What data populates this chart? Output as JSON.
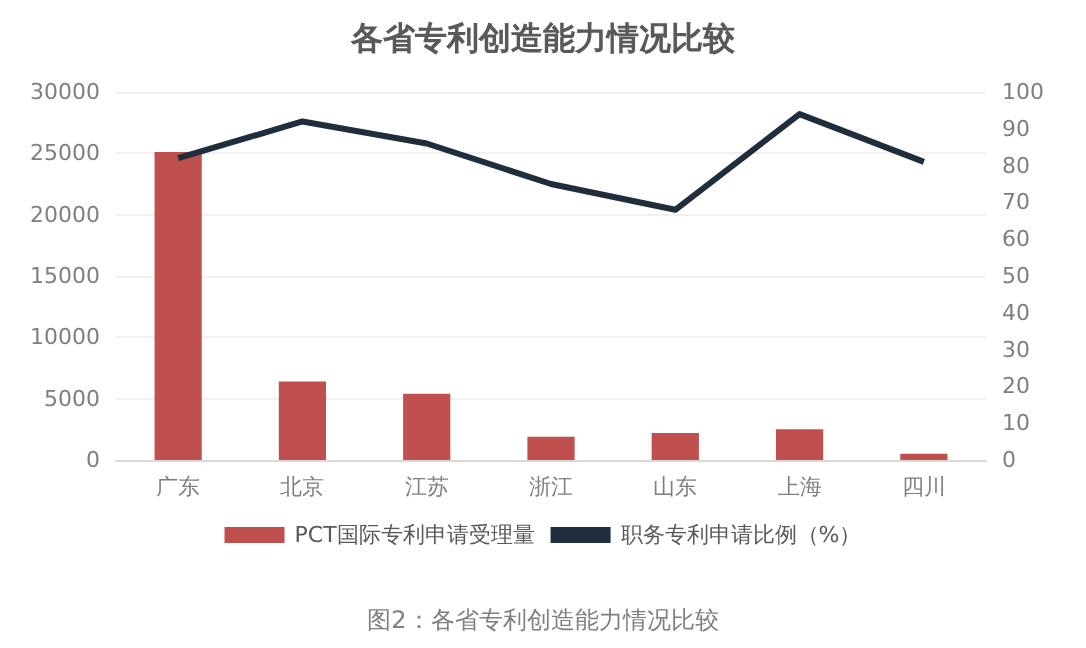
{
  "chart_data": {
    "type": "bar",
    "title": "各省专利创造能力情况比较",
    "categories": [
      "广东",
      "北京",
      "江苏",
      "浙江",
      "山东",
      "上海",
      "四川"
    ],
    "series": [
      {
        "name": "PCT国际专利申请受理量",
        "color": "#c0504d",
        "values": [
          25100,
          6400,
          5400,
          1900,
          2200,
          2500,
          500
        ]
      },
      {
        "name": "职务专利申请比例（%）",
        "type": "line",
        "axis": "y2",
        "color": "#1f2d3d",
        "values": [
          82,
          92,
          86,
          75,
          68,
          94,
          81
        ]
      }
    ],
    "ylim": [
      0,
      30000
    ],
    "yticks": [
      0,
      5000,
      10000,
      15000,
      20000,
      25000,
      30000
    ],
    "y2lim": [
      0,
      100
    ],
    "y2ticks": [
      0,
      10,
      20,
      30,
      40,
      50,
      60,
      70,
      80,
      90,
      100
    ],
    "grid": "y",
    "legend": "bottom",
    "marker": "none",
    "line_style": "solid",
    "annotations": [
      "图2：各省专利创造能力情况比较"
    ]
  }
}
